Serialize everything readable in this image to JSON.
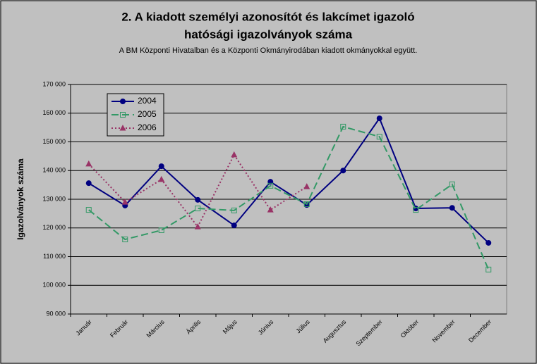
{
  "chart_data": {
    "type": "line",
    "title": [
      "2. A kiadott személyi azonosítót és lakcímet igazoló",
      "hatósági igazolványok száma"
    ],
    "subtitle": "A BM Központi Hivatalban és a Központi Okmányirodában kiadott okmányokkal együtt.",
    "y_label": "Igazolványok száma",
    "categories": [
      "Január",
      "Február",
      "Március",
      "Április",
      "Május",
      "Június",
      "Július",
      "Augusztus",
      "Szeptember",
      "Október",
      "November",
      "December"
    ],
    "series": [
      {
        "name": "2004",
        "color": "#000080",
        "marker": "circle",
        "dash": "none",
        "values": [
          135600,
          127800,
          141500,
          129800,
          120900,
          136100,
          128000,
          140000,
          158200,
          126800,
          127000,
          114800
        ]
      },
      {
        "name": "2005",
        "color": "#339966",
        "marker": "square",
        "dash": "10,5",
        "values": [
          126300,
          116000,
          119200,
          126800,
          126100,
          134700,
          128300,
          155300,
          151800,
          126300,
          135200,
          105500
        ]
      },
      {
        "name": "2006",
        "color": "#993366",
        "marker": "triangle",
        "dash": "2,3",
        "values": [
          142300,
          129000,
          136900,
          120400,
          145500,
          126300,
          134400,
          null,
          null,
          null,
          null,
          null
        ]
      }
    ],
    "ylim": [
      90000,
      170000
    ],
    "yticks": [
      {
        "value": 90000,
        "label": "90 000"
      },
      {
        "value": 100000,
        "label": "100 000"
      },
      {
        "value": 110000,
        "label": "110 000"
      },
      {
        "value": 120000,
        "label": "120 000"
      },
      {
        "value": 130000,
        "label": "130 000"
      },
      {
        "value": 140000,
        "label": "140 000"
      },
      {
        "value": 150000,
        "label": "150 000"
      },
      {
        "value": 160000,
        "label": "160 000"
      },
      {
        "value": 170000,
        "label": "170 000"
      }
    ],
    "grid": true,
    "legend": "upper left"
  }
}
